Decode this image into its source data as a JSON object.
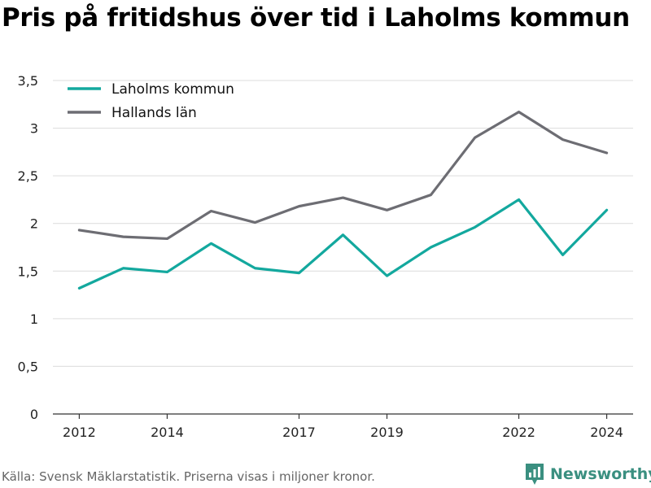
{
  "title": "Pris på fritidshus över tid i Laholms kommun",
  "source": "Källa: Svensk Mäklarstatistik. Priserna visas i miljoner kronor.",
  "brand": "Newsworthy",
  "colors": {
    "laholm": "#13a89e",
    "halland": "#6d6d73",
    "grid": "#dcdcdc",
    "axis": "#333333",
    "brand": "#3a8f80"
  },
  "chart_data": {
    "type": "line",
    "x": [
      2012,
      2013,
      2014,
      2015,
      2016,
      2017,
      2018,
      2019,
      2020,
      2021,
      2022,
      2023,
      2024
    ],
    "xticks": [
      "2012",
      "2014",
      "2017",
      "2019",
      "2022",
      "2024"
    ],
    "xtick_values": [
      2012,
      2014,
      2017,
      2019,
      2022,
      2024
    ],
    "yticks": [
      "0",
      "0,5",
      "1",
      "1,5",
      "2",
      "2,5",
      "3",
      "3,5"
    ],
    "ytick_values": [
      0,
      0.5,
      1,
      1.5,
      2,
      2.5,
      3,
      3.5
    ],
    "ylim": [
      0,
      3.5
    ],
    "xlim": [
      2011.4,
      2024.6
    ],
    "grid": true,
    "legend_position": "top-left",
    "series": [
      {
        "name": "Laholms kommun",
        "color_key": "laholm",
        "values": [
          1.32,
          1.53,
          1.49,
          1.79,
          1.53,
          1.48,
          1.88,
          1.45,
          1.75,
          1.96,
          2.25,
          1.67,
          2.14
        ]
      },
      {
        "name": "Hallands län",
        "color_key": "halland",
        "values": [
          1.93,
          1.86,
          1.84,
          2.13,
          2.01,
          2.18,
          2.27,
          2.14,
          2.3,
          2.9,
          3.17,
          2.88,
          2.74
        ]
      }
    ]
  }
}
